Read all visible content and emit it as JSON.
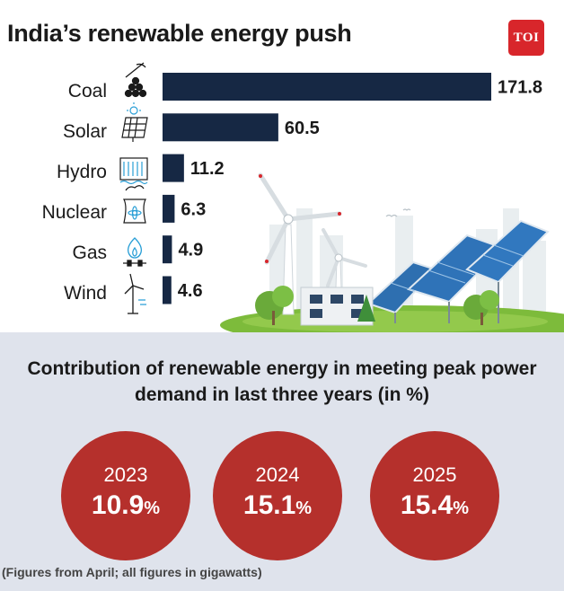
{
  "header": {
    "title": "India’s renewable energy push",
    "logo_text": "TOI"
  },
  "chart_data": [
    {
      "type": "bar",
      "orientation": "horizontal",
      "title": "",
      "categories": [
        "Coal",
        "Solar",
        "Hydro",
        "Nuclear",
        "Gas",
        "Wind"
      ],
      "values": [
        171.8,
        60.5,
        11.2,
        6.3,
        4.9,
        4.6
      ],
      "value_labels": [
        "171.8",
        "60.5",
        "11.2",
        "6.3",
        "4.9",
        "4.6"
      ],
      "icons": [
        "coal-icon",
        "solar-panel-icon",
        "hydro-dam-icon",
        "nuclear-plant-icon",
        "gas-flame-icon",
        "wind-turbine-icon"
      ],
      "bar_color": "#162844",
      "xlabel": "",
      "ylabel": ""
    },
    {
      "type": "table",
      "title": "Contribution of renewable energy in meeting peak power demand in last three years (in %)",
      "categories": [
        "2023",
        "2024",
        "2025"
      ],
      "values": [
        10.9,
        15.1,
        15.4
      ],
      "value_labels": [
        "10.9",
        "15.1",
        "15.4"
      ],
      "unit": "%",
      "color": "#b5302c"
    }
  ],
  "footnote": "(Figures from April; all figures in gigawatts)"
}
